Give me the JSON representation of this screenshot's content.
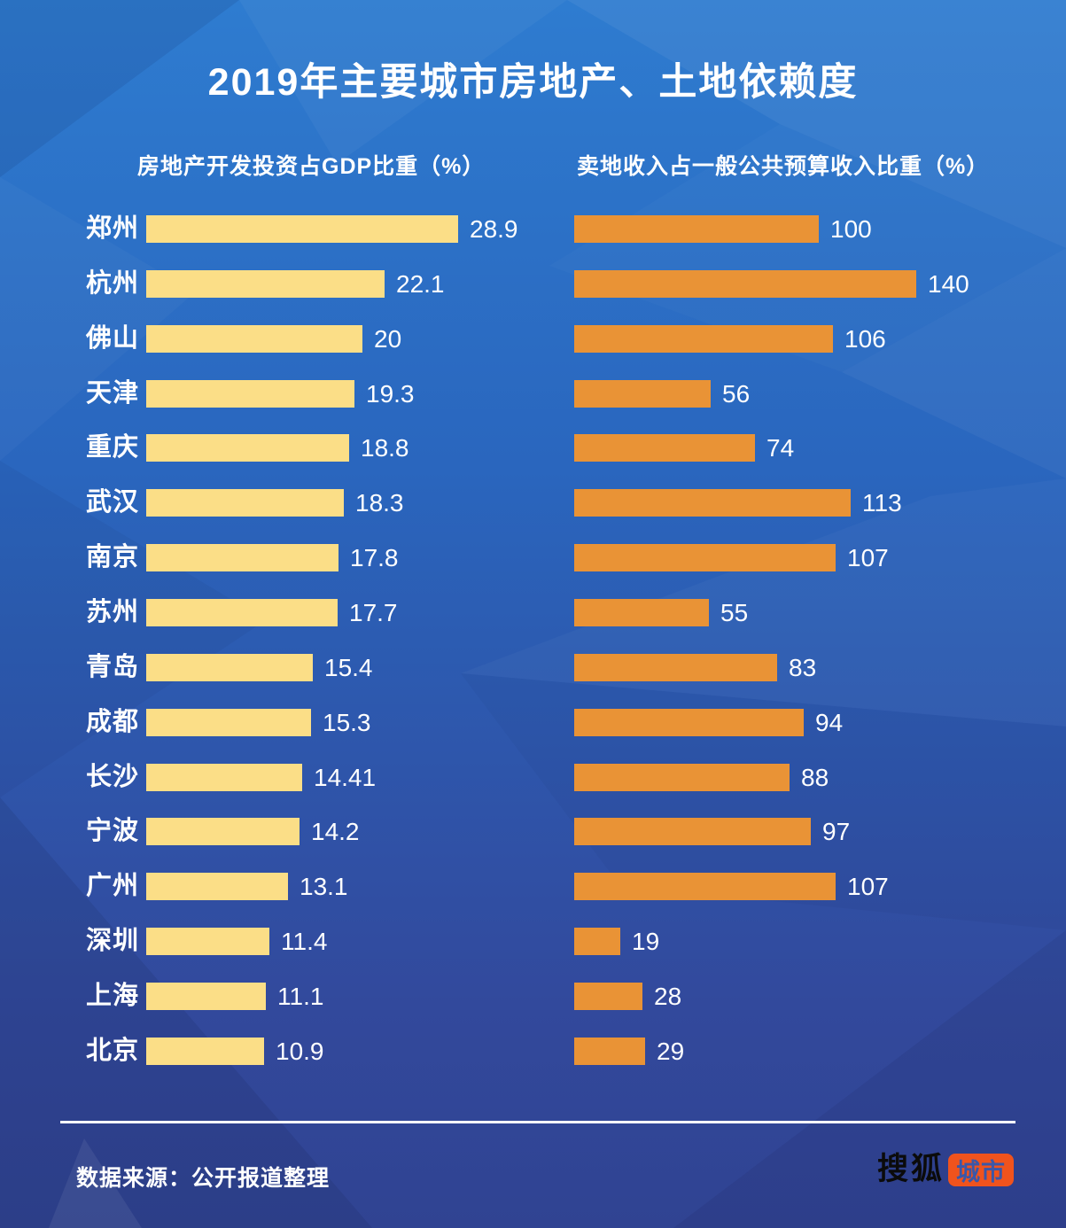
{
  "title": "2019年主要城市房地产、土地依赖度",
  "left_header": "房地产开发投资占GDP比重（%）",
  "right_header": "卖地收入占一般公共预算收入比重（%）",
  "chart_data": {
    "type": "bar",
    "orientation": "horizontal",
    "title": "2019年主要城市房地产、土地依赖度",
    "categories": [
      "郑州",
      "杭州",
      "佛山",
      "天津",
      "重庆",
      "武汉",
      "南京",
      "苏州",
      "青岛",
      "成都",
      "长沙",
      "宁波",
      "广州",
      "深圳",
      "上海",
      "北京"
    ],
    "series": [
      {
        "name": "房地产开发投资占GDP比重（%）",
        "values": [
          28.9,
          22.1,
          20,
          19.3,
          18.8,
          18.3,
          17.8,
          17.7,
          15.4,
          15.3,
          14.41,
          14.2,
          13.1,
          11.4,
          11.1,
          10.9
        ],
        "color": "#FBDE87",
        "axis_max": 28.9
      },
      {
        "name": "卖地收入占一般公共预算收入比重（%）",
        "values": [
          100,
          140,
          106,
          56,
          74,
          113,
          107,
          55,
          83,
          94,
          88,
          97,
          107,
          19,
          28,
          29
        ],
        "color": "#E99336",
        "axis_max": 140
      }
    ],
    "value_labels_shown": true,
    "grid": false,
    "legend_position": "column-headers"
  },
  "footer": {
    "source": "数据来源：公开报道整理",
    "logo": {
      "brand": "搜狐",
      "suffix": "城市"
    }
  },
  "colors": {
    "left_bar": "#FBDE87",
    "right_bar": "#E99336",
    "logo_box": "#F0531D",
    "text": "#FFFFFF",
    "bg_top": "#2E7CD0",
    "bg_bottom": "#304392"
  }
}
